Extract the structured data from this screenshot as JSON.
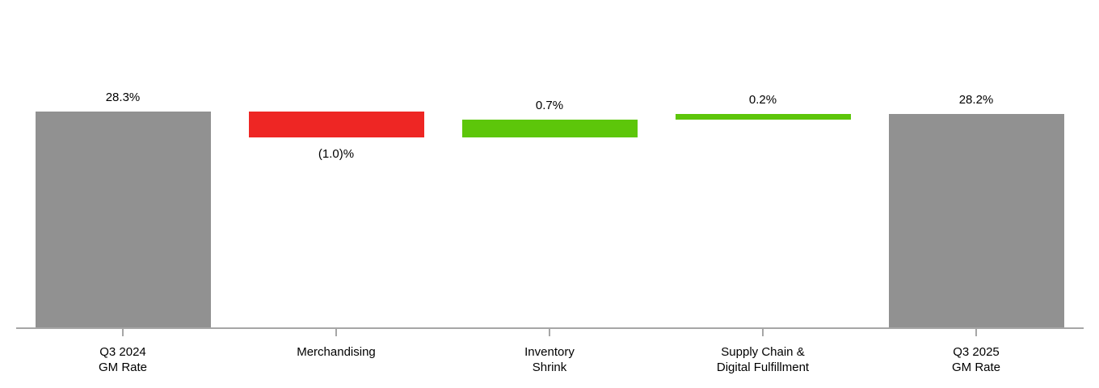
{
  "chart_data": {
    "type": "bar",
    "subtype": "waterfall",
    "title": "",
    "xlabel": "",
    "ylabel": "",
    "grid": false,
    "legend": "none",
    "categories": [
      [
        "Q3 2024",
        "GM Rate"
      ],
      [
        "Merchandising"
      ],
      [
        "Inventory",
        "Shrink"
      ],
      [
        "Supply Chain &",
        "Digital Fulfillment"
      ],
      [
        "Q3 2025",
        "GM Rate"
      ]
    ],
    "bars": [
      {
        "label": "28.3%",
        "value": 28.3,
        "kind": "total",
        "label_position": "above"
      },
      {
        "label": "(1.0)%",
        "value": -1.0,
        "kind": "decrease",
        "label_position": "below"
      },
      {
        "label": "0.7%",
        "value": 0.7,
        "kind": "increase",
        "label_position": "above"
      },
      {
        "label": "0.2%",
        "value": 0.2,
        "kind": "increase",
        "label_position": "above"
      },
      {
        "label": "28.2%",
        "value": 28.2,
        "kind": "total",
        "label_position": "above"
      }
    ],
    "colors": {
      "total": "#919191",
      "increase": "#5dc60a",
      "decrease": "#ee2624",
      "axis": "#a6a6a6",
      "label_text": "#000000"
    }
  }
}
